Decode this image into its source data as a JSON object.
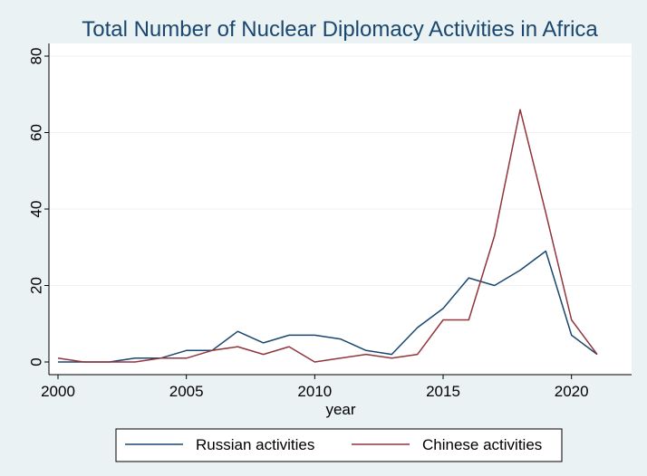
{
  "chart_data": {
    "type": "line",
    "title": "Total Number of  Nuclear Diplomacy Activities in Africa",
    "xlabel": "year",
    "ylabel": "",
    "xlim": [
      2000,
      2021
    ],
    "ylim": [
      0,
      80
    ],
    "x": [
      2000,
      2001,
      2002,
      2003,
      2004,
      2005,
      2006,
      2007,
      2008,
      2009,
      2010,
      2011,
      2012,
      2013,
      2014,
      2015,
      2016,
      2017,
      2018,
      2019,
      2020,
      2021
    ],
    "xticks": [
      2000,
      2005,
      2010,
      2015,
      2020
    ],
    "yticks": [
      0,
      20,
      40,
      60,
      80
    ],
    "grid": true,
    "legend_position": "bottom",
    "series": [
      {
        "name": "Russian activities",
        "color": "#1a476f",
        "values": [
          0,
          0,
          0,
          1,
          1,
          3,
          3,
          8,
          5,
          7,
          7,
          6,
          3,
          2,
          9,
          14,
          22,
          20,
          24,
          29,
          7,
          2
        ]
      },
      {
        "name": "Chinese activities",
        "color": "#90353b",
        "values": [
          1,
          0,
          0,
          0,
          1,
          1,
          3,
          4,
          2,
          4,
          0,
          1,
          2,
          1,
          2,
          11,
          11,
          33,
          66,
          39,
          11,
          2
        ]
      }
    ]
  }
}
